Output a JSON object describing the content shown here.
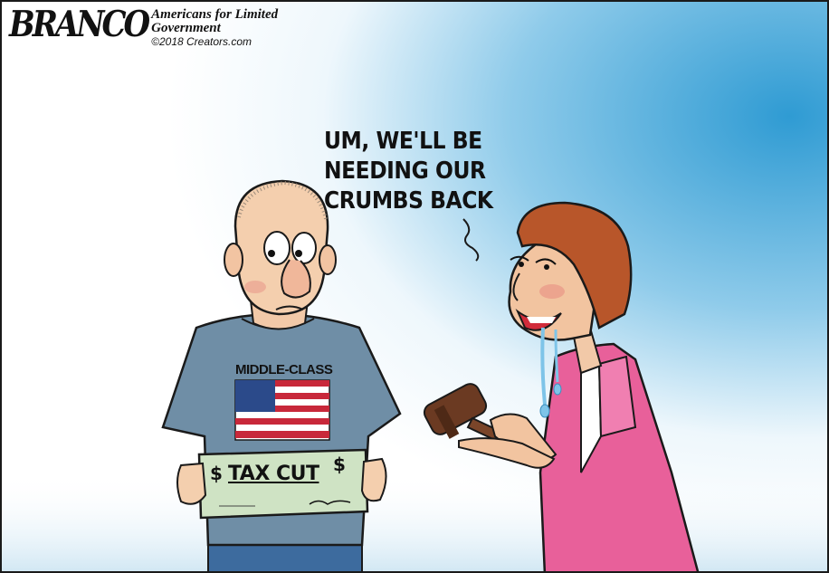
{
  "header": {
    "signature": "BRANCO",
    "org_line1": "Americans for Limited",
    "org_line2": "Government",
    "copyright": "©2018 Creators.com"
  },
  "speech_bubble": {
    "line1": "UM, WE'LL BE",
    "line2": "NEEDING OUR",
    "line3": "CRUMBS BACK"
  },
  "man": {
    "shirt_text": "MIDDLE-CLASS",
    "check_text": "TAX CUT"
  },
  "colors": {
    "sky": "#3fa5d6",
    "shirt": "#6f8ea6",
    "check": "#cfe3c4",
    "jacket": "#e8609a",
    "hair": "#b8562a",
    "gavel": "#6b3a22"
  },
  "icons": [
    "american-flag-icon",
    "gavel-icon",
    "dollar-sign-icon"
  ]
}
